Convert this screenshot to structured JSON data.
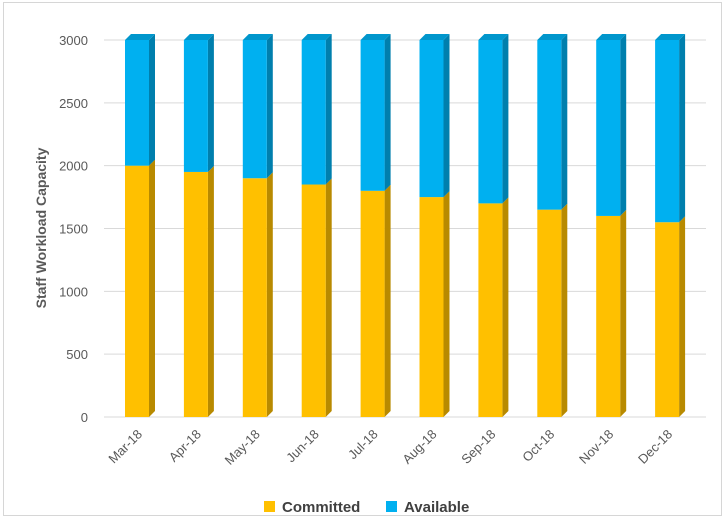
{
  "chart_data": {
    "type": "bar",
    "stacked": true,
    "style": "3d-column",
    "title": "",
    "xlabel": "",
    "ylabel": "Staff Workload Capacity",
    "ylim": [
      0,
      3000
    ],
    "yticks": [
      0,
      500,
      1000,
      1500,
      2000,
      2500,
      3000
    ],
    "grid": true,
    "legend_position": "bottom",
    "categories": [
      "Mar-18",
      "Apr-18",
      "May-18",
      "Jun-18",
      "Jul-18",
      "Aug-18",
      "Sep-18",
      "Oct-18",
      "Nov-18",
      "Dec-18"
    ],
    "series": [
      {
        "name": "Committed",
        "color": "#FFC000",
        "values": [
          2000,
          1950,
          1900,
          1850,
          1800,
          1750,
          1700,
          1650,
          1600,
          1550
        ]
      },
      {
        "name": "Available",
        "color": "#00B0F0",
        "values": [
          1000,
          1050,
          1100,
          1150,
          1200,
          1250,
          1300,
          1350,
          1400,
          1450
        ]
      }
    ]
  }
}
